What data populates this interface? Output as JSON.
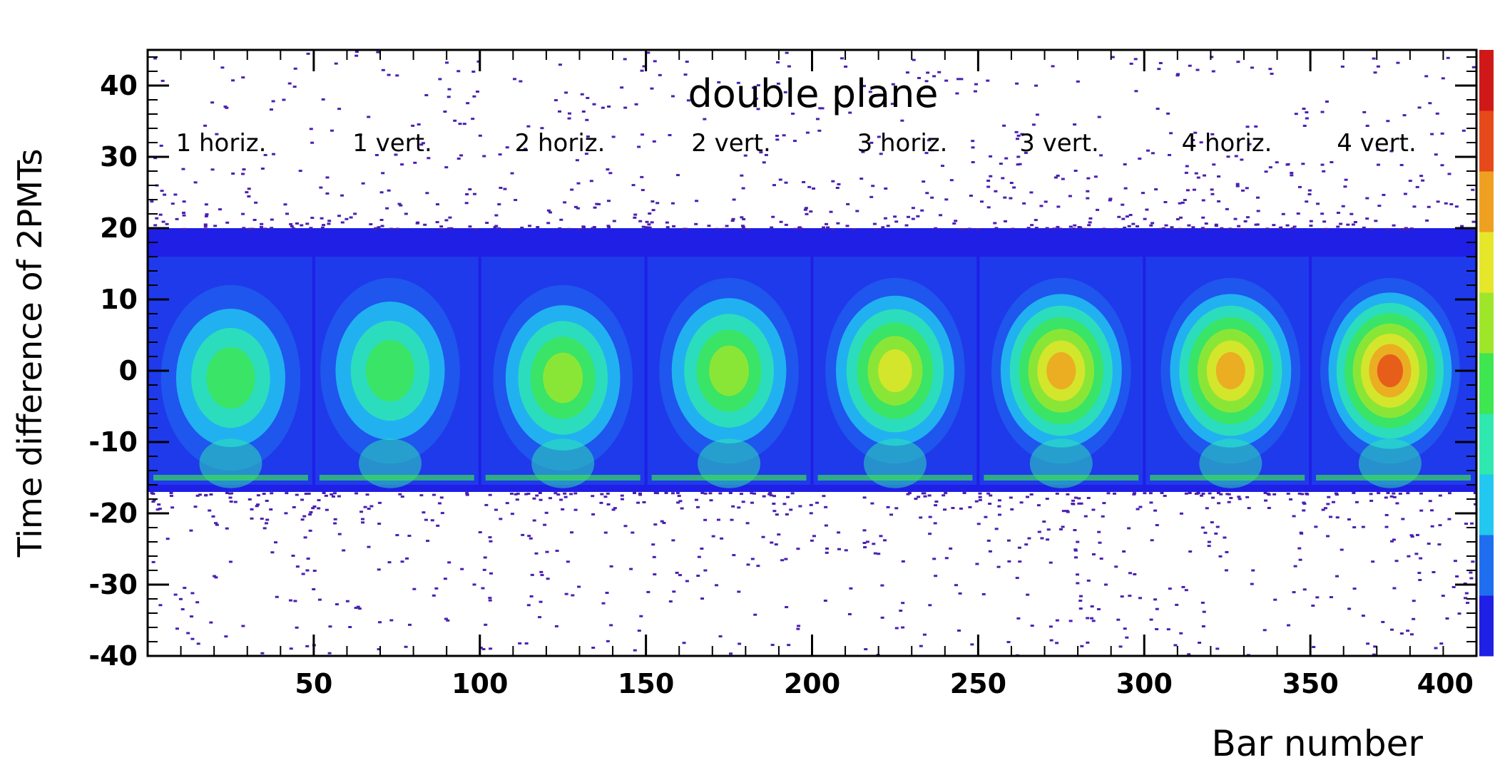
{
  "chart_data": {
    "type": "heatmap",
    "title": "double plane",
    "xlabel": "Bar number",
    "ylabel": "Time difference of 2PMTs",
    "xlim": [
      0,
      400
    ],
    "ylim": [
      -40,
      45
    ],
    "x_ticks": [
      50,
      100,
      150,
      200,
      250,
      300,
      350,
      400
    ],
    "x_tick_labels": [
      "50",
      "100",
      "150",
      "200",
      "250",
      "300",
      "350",
      "400"
    ],
    "y_ticks": [
      -40,
      -30,
      -20,
      -10,
      0,
      10,
      20,
      30,
      40
    ],
    "y_tick_labels": [
      "-40",
      "-30",
      "-20",
      "-10",
      "0",
      "10",
      "20",
      "30",
      "40"
    ],
    "colorscale": [
      "#1f1fe6",
      "#1f6ef0",
      "#22c8f0",
      "#2ee8b0",
      "#3ee650",
      "#9fe62a",
      "#e6e62a",
      "#f0a020",
      "#e64a1a",
      "#d01818"
    ],
    "band": {
      "y_low": -17,
      "y_high": 20
    },
    "regions": [
      {
        "label": "1 horiz.",
        "x_start": 0,
        "x_end": 50,
        "peak": {
          "x": 25,
          "y": -1
        },
        "intensity": 0.4
      },
      {
        "label": "1 vert.",
        "x_start": 50,
        "x_end": 100,
        "peak": {
          "x": 73,
          "y": 0
        },
        "intensity": 0.48
      },
      {
        "label": "2 horiz.",
        "x_start": 100,
        "x_end": 150,
        "peak": {
          "x": 125,
          "y": -1
        },
        "intensity": 0.52
      },
      {
        "label": "2 vert.",
        "x_start": 150,
        "x_end": 200,
        "peak": {
          "x": 175,
          "y": 0
        },
        "intensity": 0.58
      },
      {
        "label": "3 horiz.",
        "x_start": 200,
        "x_end": 250,
        "peak": {
          "x": 225,
          "y": 0
        },
        "intensity": 0.66
      },
      {
        "label": "3 vert.",
        "x_start": 250,
        "x_end": 300,
        "peak": {
          "x": 275,
          "y": 0
        },
        "intensity": 0.74
      },
      {
        "label": "4 horiz.",
        "x_start": 300,
        "x_end": 350,
        "peak": {
          "x": 326,
          "y": 0
        },
        "intensity": 0.82
      },
      {
        "label": "4 vert.",
        "x_start": 350,
        "x_end": 400,
        "peak": {
          "x": 374,
          "y": 0
        },
        "intensity": 0.92
      }
    ]
  }
}
